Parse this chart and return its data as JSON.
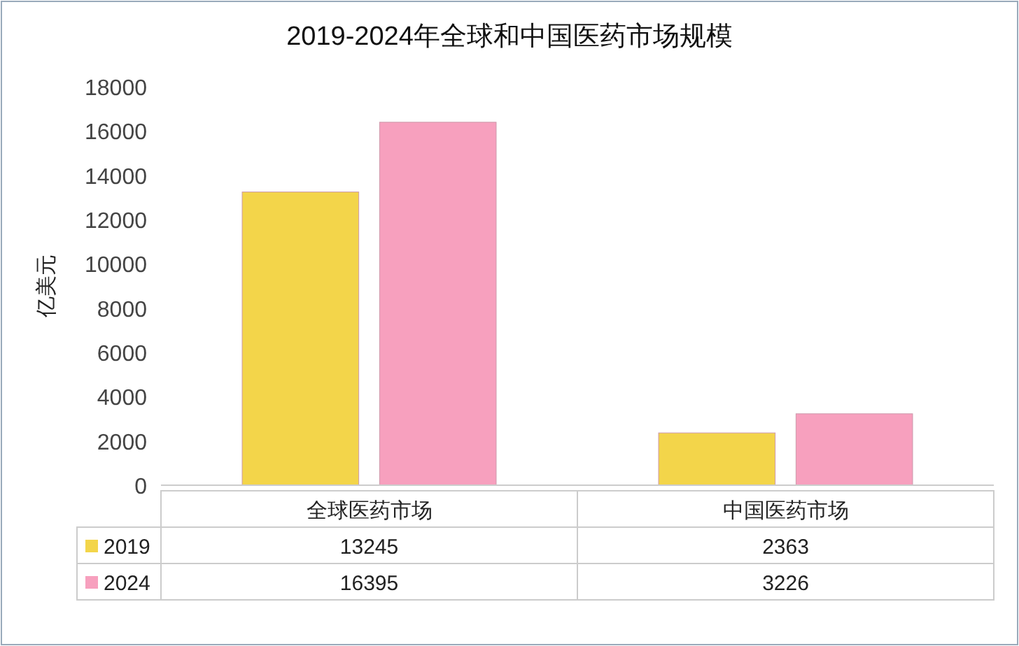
{
  "chart_data": {
    "type": "bar",
    "title": "2019-2024年全球和中国医药市场规模",
    "ylabel": "亿美元",
    "categories": [
      "全球医药市场",
      "中国医药市场"
    ],
    "series": [
      {
        "name": "2019",
        "color": "#f3d54a",
        "values": [
          13245,
          2363
        ]
      },
      {
        "name": "2024",
        "color": "#f7a0be",
        "values": [
          16395,
          3226
        ]
      }
    ],
    "ylim": [
      0,
      18000
    ],
    "yticks": [
      0,
      2000,
      4000,
      6000,
      8000,
      10000,
      12000,
      14000,
      16000,
      18000
    ],
    "grid": false,
    "data_labels": true,
    "legend": "bottom"
  }
}
